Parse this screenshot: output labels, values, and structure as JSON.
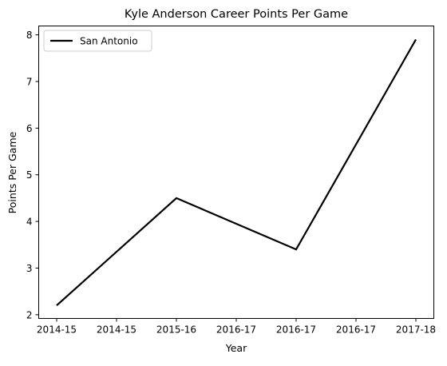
{
  "chart_data": {
    "type": "line",
    "title": "Kyle Anderson  Career Points Per Game",
    "xlabel": "Year",
    "ylabel": "Points Per Game",
    "x_tick_labels": [
      "2014-15",
      "2014-15",
      "2015-16",
      "2016-17",
      "2016-17",
      "2016-17",
      "2017-18"
    ],
    "y_ticks": [
      2,
      3,
      4,
      5,
      6,
      7,
      8
    ],
    "ylim": [
      1.92,
      8.19
    ],
    "grid": false,
    "legend_position": "top-left",
    "series": [
      {
        "name": "San Antonio",
        "color": "#000000",
        "x": [
          "2014-15",
          "2015-16",
          "2016-17",
          "2017-18"
        ],
        "x_positions": [
          0,
          1,
          2,
          3
        ],
        "y": [
          2.2,
          4.5,
          3.4,
          7.9
        ]
      }
    ]
  }
}
